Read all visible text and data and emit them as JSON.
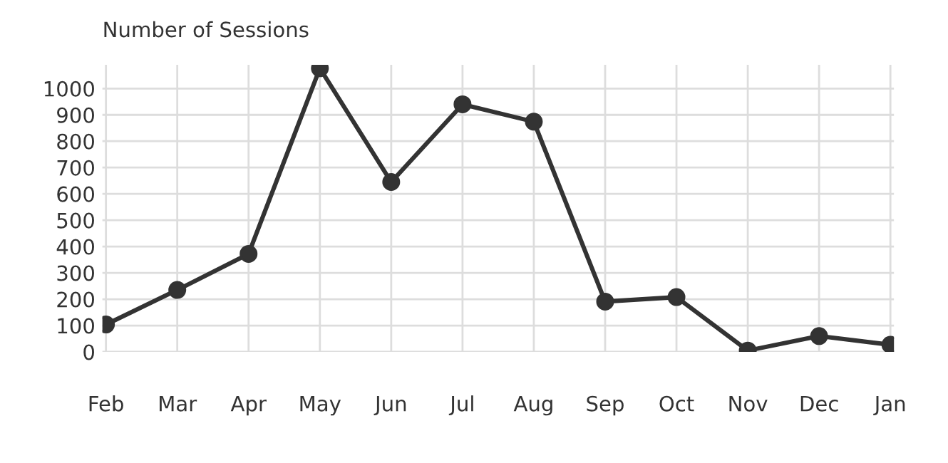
{
  "chart_data": {
    "type": "line",
    "title": "Number of Sessions",
    "categories": [
      "Feb",
      "Mar",
      "Apr",
      "May",
      "Jun",
      "Jul",
      "Aug",
      "Sep",
      "Oct",
      "Nov",
      "Dec",
      "Jan"
    ],
    "series": [
      {
        "color": "#333333",
        "values": [
          104,
          235,
          372,
          1077,
          645,
          940,
          874,
          191,
          208,
          5,
          60,
          27
        ]
      }
    ],
    "ylim": [
      0,
      1090
    ],
    "yticks": [
      0,
      100,
      200,
      300,
      400,
      500,
      600,
      700,
      800,
      900,
      1000
    ],
    "grid": true,
    "marker": "circle",
    "line_style": "solid",
    "legend": false
  }
}
